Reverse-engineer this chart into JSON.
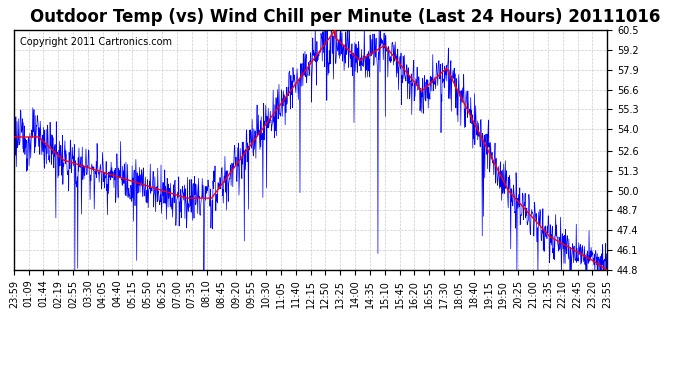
{
  "title": "Outdoor Temp (vs) Wind Chill per Minute (Last 24 Hours) 20111016",
  "copyright_text": "Copyright 2011 Cartronics.com",
  "y_ticks": [
    44.8,
    46.1,
    47.4,
    48.7,
    50.0,
    51.3,
    52.6,
    54.0,
    55.3,
    56.6,
    57.9,
    59.2,
    60.5
  ],
  "ylim": [
    44.8,
    60.5
  ],
  "x_labels": [
    "23:59",
    "01:09",
    "01:44",
    "02:19",
    "02:55",
    "03:30",
    "04:05",
    "04:40",
    "05:15",
    "05:50",
    "06:25",
    "07:00",
    "07:35",
    "08:10",
    "08:45",
    "09:20",
    "09:55",
    "10:30",
    "11:05",
    "11:40",
    "12:15",
    "12:50",
    "13:25",
    "14:00",
    "14:35",
    "15:10",
    "15:45",
    "16:20",
    "16:55",
    "17:30",
    "18:05",
    "18:40",
    "19:15",
    "19:50",
    "20:25",
    "21:00",
    "21:35",
    "22:10",
    "22:45",
    "23:20",
    "23:55"
  ],
  "line_color_blue": "#0000ff",
  "line_color_red": "#ff0000",
  "background_color": "#ffffff",
  "grid_color": "#cccccc",
  "title_fontsize": 12,
  "copyright_fontsize": 7,
  "tick_label_fontsize": 7
}
